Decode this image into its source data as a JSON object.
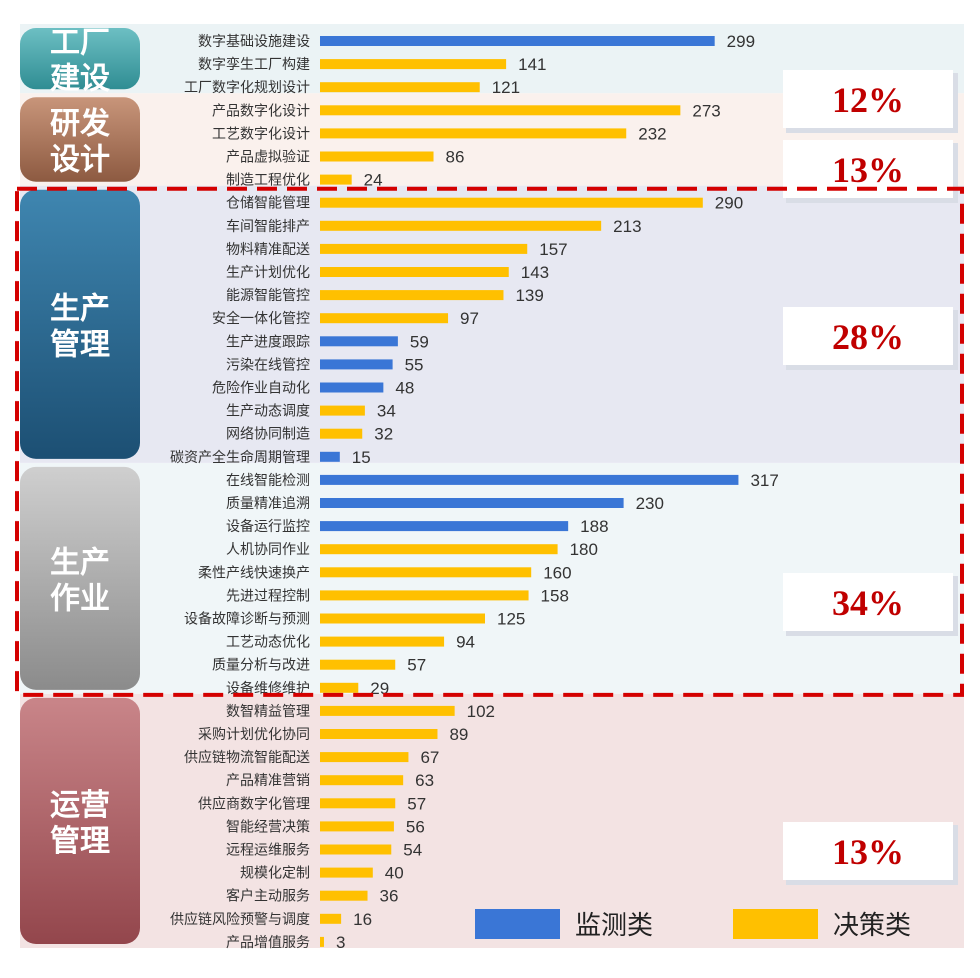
{
  "chart_data": {
    "type": "bar",
    "orientation": "horizontal",
    "legend": {
      "placement": "bottom-right",
      "items": [
        {
          "key": "monitor",
          "label": "监测类",
          "color": "#3a76d6"
        },
        {
          "key": "decision",
          "label": "决策类",
          "color": "#ffc000"
        }
      ]
    },
    "groups": [
      {
        "name_lines": [
          "工厂",
          "建设"
        ],
        "percent": "12%",
        "color_top": "#6dbfc3",
        "color_bottom": "#2f8d93",
        "panel": "#ebf3f5",
        "highlighted": false,
        "items": [
          {
            "label": "数字基础设施建设",
            "value": 299,
            "type": "monitor"
          },
          {
            "label": "数字孪生工厂构建",
            "value": 141,
            "type": "decision"
          },
          {
            "label": "工厂数字化规划设计",
            "value": 121,
            "type": "decision"
          }
        ]
      },
      {
        "name_lines": [
          "研发",
          "设计"
        ],
        "percent": "13%",
        "color_top": "#c8957a",
        "color_bottom": "#8d5a41",
        "panel": "#faf1ed",
        "highlighted": false,
        "items": [
          {
            "label": "产品数字化设计",
            "value": 273,
            "type": "decision"
          },
          {
            "label": "工艺数字化设计",
            "value": 232,
            "type": "decision"
          },
          {
            "label": "产品虚拟验证",
            "value": 86,
            "type": "decision"
          },
          {
            "label": "制造工程优化",
            "value": 24,
            "type": "decision"
          }
        ]
      },
      {
        "name_lines": [
          "生产",
          "管理"
        ],
        "percent": "28%",
        "color_top": "#3f86b0",
        "color_bottom": "#1c4f73",
        "panel": "#e7e8f2",
        "highlighted": true,
        "items": [
          {
            "label": "仓储智能管理",
            "value": 290,
            "type": "decision"
          },
          {
            "label": "车间智能排产",
            "value": 213,
            "type": "decision"
          },
          {
            "label": "物料精准配送",
            "value": 157,
            "type": "decision"
          },
          {
            "label": "生产计划优化",
            "value": 143,
            "type": "decision"
          },
          {
            "label": "能源智能管控",
            "value": 139,
            "type": "decision"
          },
          {
            "label": "安全一体化管控",
            "value": 97,
            "type": "decision"
          },
          {
            "label": "生产进度跟踪",
            "value": 59,
            "type": "monitor"
          },
          {
            "label": "污染在线管控",
            "value": 55,
            "type": "monitor"
          },
          {
            "label": "危险作业自动化",
            "value": 48,
            "type": "monitor"
          },
          {
            "label": "生产动态调度",
            "value": 34,
            "type": "decision"
          },
          {
            "label": "网络协同制造",
            "value": 32,
            "type": "decision"
          },
          {
            "label": "碳资产全生命周期管理",
            "value": 15,
            "type": "monitor"
          }
        ]
      },
      {
        "name_lines": [
          "生产",
          "作业"
        ],
        "percent": "34%",
        "color_top": "#cfcfcf",
        "color_bottom": "#8b8b8b",
        "panel": "#f0f6f8",
        "highlighted": true,
        "items": [
          {
            "label": "在线智能检测",
            "value": 317,
            "type": "monitor"
          },
          {
            "label": "质量精准追溯",
            "value": 230,
            "type": "monitor"
          },
          {
            "label": "设备运行监控",
            "value": 188,
            "type": "monitor"
          },
          {
            "label": "人机协同作业",
            "value": 180,
            "type": "decision"
          },
          {
            "label": "柔性产线快速换产",
            "value": 160,
            "type": "decision"
          },
          {
            "label": "先进过程控制",
            "value": 158,
            "type": "decision"
          },
          {
            "label": "设备故障诊断与预测",
            "value": 125,
            "type": "decision"
          },
          {
            "label": "工艺动态优化",
            "value": 94,
            "type": "decision"
          },
          {
            "label": "质量分析与改进",
            "value": 57,
            "type": "decision"
          },
          {
            "label": "设备维修维护",
            "value": 29,
            "type": "decision"
          }
        ]
      },
      {
        "name_lines": [
          "运营",
          "管理"
        ],
        "percent": "13%",
        "color_top": "#c98589",
        "color_bottom": "#93464c",
        "panel": "#f3e3e3",
        "highlighted": false,
        "items": [
          {
            "label": "数智精益管理",
            "value": 102,
            "type": "decision"
          },
          {
            "label": "采购计划优化协同",
            "value": 89,
            "type": "decision"
          },
          {
            "label": "供应链物流智能配送",
            "value": 67,
            "type": "decision"
          },
          {
            "label": "产品精准营销",
            "value": 63,
            "type": "decision"
          },
          {
            "label": "供应商数字化管理",
            "value": 57,
            "type": "decision"
          },
          {
            "label": "智能经营决策",
            "value": 56,
            "type": "decision"
          },
          {
            "label": "远程运维服务",
            "value": 54,
            "type": "decision"
          },
          {
            "label": "规模化定制",
            "value": 40,
            "type": "decision"
          },
          {
            "label": "客户主动服务",
            "value": 36,
            "type": "decision"
          },
          {
            "label": "供应链风险预警与调度",
            "value": 16,
            "type": "decision"
          },
          {
            "label": "产品增值服务",
            "value": 3,
            "type": "decision"
          }
        ]
      }
    ]
  }
}
